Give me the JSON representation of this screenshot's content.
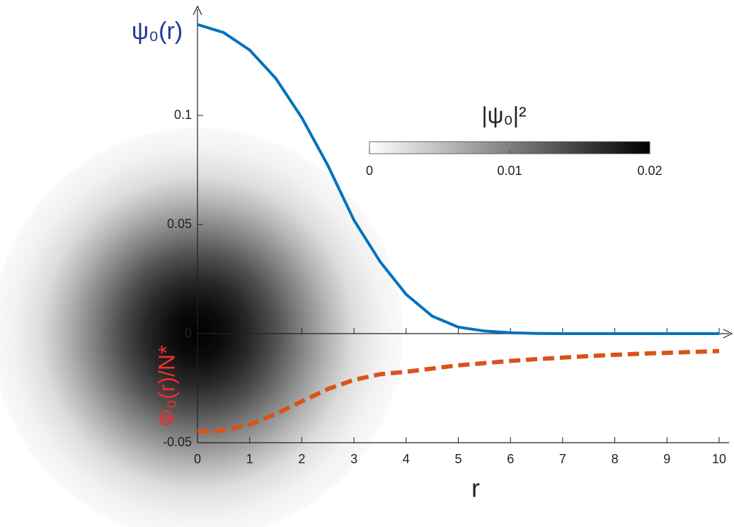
{
  "chart_data": {
    "type": "line",
    "x": [
      0,
      0.5,
      1,
      1.5,
      2,
      2.5,
      3,
      3.5,
      4,
      4.5,
      5,
      5.5,
      6,
      6.5,
      7,
      7.5,
      8,
      8.5,
      9,
      9.5,
      10
    ],
    "series": [
      {
        "name": "ψ₀(r)",
        "color": "#0072bd",
        "dash": false,
        "values": [
          0.1417,
          0.138,
          0.13,
          0.117,
          0.099,
          0.077,
          0.052,
          0.033,
          0.018,
          0.008,
          0.003,
          0.0012,
          0.0004,
          0.0001,
          0,
          0,
          0,
          0,
          0,
          0,
          0
        ]
      },
      {
        "name": "Φ₀(r)/N*",
        "color": "#d95319",
        "dash": true,
        "values": [
          -0.045,
          -0.0443,
          -0.0417,
          -0.0368,
          -0.031,
          -0.0254,
          -0.0212,
          -0.0186,
          -0.0175,
          -0.016,
          -0.0145,
          -0.0135,
          -0.0125,
          -0.0117,
          -0.011,
          -0.0103,
          -0.0097,
          -0.0092,
          -0.0088,
          -0.0084,
          -0.008
        ]
      }
    ],
    "xlabel": "r",
    "xlim": [
      0,
      10
    ],
    "xticks": [
      0,
      1,
      2,
      3,
      4,
      5,
      6,
      7,
      8,
      9,
      10
    ],
    "ylim": [
      -0.05,
      0.15
    ],
    "yticks": [
      0.1,
      0.05,
      0,
      -0.05
    ],
    "colorbar": {
      "label": "|ψ₀|²",
      "lim": [
        0,
        0.02
      ],
      "ticks": [
        0,
        0.01,
        0.02
      ],
      "colormap": [
        "#ffffff",
        "#000000"
      ]
    }
  }
}
